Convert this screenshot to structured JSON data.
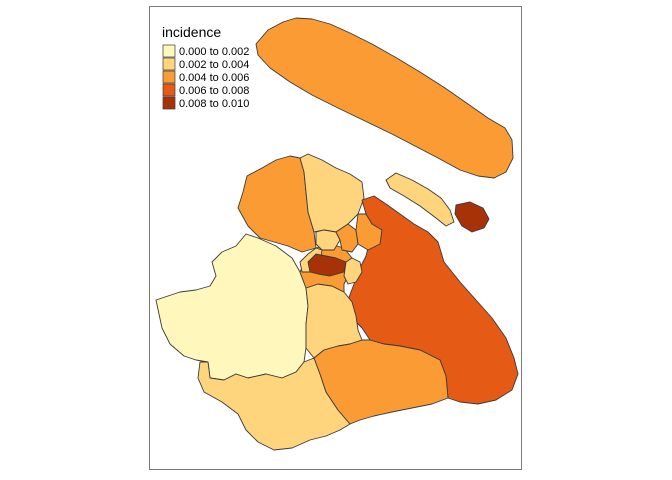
{
  "map": {
    "legend": {
      "title": "incidence",
      "items": [
        {
          "label": "0.000 to 0.002",
          "color": "#FFF7BC"
        },
        {
          "label": "0.002 to 0.004",
          "color": "#FED57D"
        },
        {
          "label": "0.004 to 0.006",
          "color": "#FB9B33"
        },
        {
          "label": "0.006 to 0.008",
          "color": "#E55A14"
        },
        {
          "label": "0.008 to 0.010",
          "color": "#A83208"
        }
      ]
    },
    "regions": [
      {
        "class_index": 2
      },
      {
        "class_index": 1
      },
      {
        "class_index": 4
      },
      {
        "class_index": 2
      },
      {
        "class_index": 1
      },
      {
        "class_index": 3
      },
      {
        "class_index": 0
      },
      {
        "class_index": 1
      },
      {
        "class_index": 2
      },
      {
        "class_index": 1
      },
      {
        "class_index": 2
      },
      {
        "class_index": 1
      },
      {
        "class_index": 2
      },
      {
        "class_index": 2
      },
      {
        "class_index": 1
      },
      {
        "class_index": 4
      },
      {
        "class_index": 1
      }
    ]
  }
}
